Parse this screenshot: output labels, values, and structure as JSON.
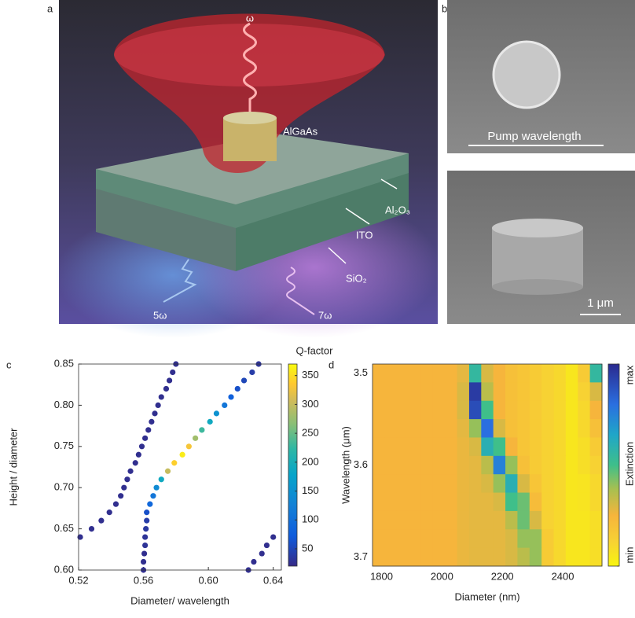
{
  "figure": {
    "panel_a": {
      "label": "a",
      "omega": "ω",
      "pillar": "AlGaAs",
      "layer_1": "Al₂O₃",
      "layer_2": "ITO",
      "layer_3": "SiO₂",
      "harmonic_5": "5ω",
      "harmonic_7": "7ω"
    },
    "panel_b": {
      "label": "b",
      "scale_top": "Pump wavelength",
      "scale_bottom": "1 μm"
    }
  },
  "chart_data": [
    {
      "type": "scatter",
      "panel_label": "c",
      "x_label": "Diameter/ wavelength",
      "y_label": "Height / diameter",
      "colorbar_label": "Q-factor",
      "colormap": "parula",
      "x": [
        0.521,
        0.528,
        0.534,
        0.539,
        0.543,
        0.546,
        0.548,
        0.55,
        0.552,
        0.555,
        0.557,
        0.559,
        0.561,
        0.563,
        0.565,
        0.567,
        0.569,
        0.571,
        0.574,
        0.576,
        0.578,
        0.58,
        0.56,
        0.56,
        0.5605,
        0.561,
        0.561,
        0.5615,
        0.562,
        0.562,
        0.564,
        0.566,
        0.568,
        0.571,
        0.575,
        0.579,
        0.584,
        0.588,
        0.592,
        0.596,
        0.601,
        0.605,
        0.61,
        0.614,
        0.618,
        0.622,
        0.627,
        0.631,
        0.6247,
        0.628,
        0.633,
        0.636,
        0.64
      ],
      "values": [
        0.64,
        0.65,
        0.66,
        0.67,
        0.68,
        0.69,
        0.7,
        0.71,
        0.72,
        0.73,
        0.74,
        0.75,
        0.76,
        0.77,
        0.78,
        0.79,
        0.8,
        0.81,
        0.82,
        0.83,
        0.84,
        0.85,
        0.6,
        0.61,
        0.62,
        0.63,
        0.64,
        0.65,
        0.66,
        0.67,
        0.68,
        0.69,
        0.7,
        0.71,
        0.72,
        0.73,
        0.74,
        0.75,
        0.76,
        0.77,
        0.78,
        0.79,
        0.8,
        0.81,
        0.82,
        0.83,
        0.84,
        0.85,
        0.6,
        0.61,
        0.62,
        0.63,
        0.64
      ],
      "color_values": [
        25,
        25,
        25,
        25,
        25,
        25,
        25,
        25,
        25,
        25,
        25,
        25,
        25,
        25,
        25,
        25,
        25,
        25,
        25,
        25,
        25,
        25,
        25,
        25,
        25,
        30,
        30,
        35,
        40,
        60,
        90,
        110,
        140,
        190,
        300,
        340,
        360,
        330,
        280,
        230,
        190,
        150,
        110,
        80,
        60,
        50,
        40,
        30,
        25,
        25,
        25,
        25,
        25
      ],
      "xlim": [
        0.52,
        0.645
      ],
      "ylim": [
        0.6,
        0.85
      ],
      "xticks": [
        0.52,
        0.56,
        {
          "value": 0.6,
          "label": "0.60"
        },
        0.64
      ],
      "yticks": [
        {
          "value": 0.6,
          "label": "0.60"
        },
        0.65,
        {
          "value": 0.7,
          "label": "0.70"
        },
        0.75,
        {
          "value": 0.8,
          "label": "0.80"
        },
        0.85
      ],
      "clim": [
        20,
        370
      ],
      "cticks": [
        50,
        100,
        150,
        200,
        250,
        300,
        350
      ]
    },
    {
      "type": "heatmap",
      "panel_label": "d",
      "x_label": "Diameter (nm)",
      "y_label": "Wavelength (μm)",
      "colorbar_label": "Extinction",
      "x": [
        1790,
        1830,
        1870,
        1910,
        1950,
        1990,
        2030,
        2070,
        2110,
        2150,
        2190,
        2230,
        2270,
        2310,
        2350,
        2390,
        2430,
        2470,
        2510
      ],
      "y": [
        3.5,
        3.52,
        3.54,
        3.56,
        3.58,
        3.6,
        3.62,
        3.64,
        3.66,
        3.68,
        3.7
      ],
      "z": [
        [
          0.25,
          0.25,
          0.25,
          0.25,
          0.25,
          0.25,
          0.25,
          0.28,
          0.55,
          0.3,
          0.25,
          0.2,
          0.18,
          0.15,
          0.12,
          0.1,
          0.05,
          0.15,
          0.55
        ],
        [
          0.25,
          0.25,
          0.25,
          0.25,
          0.25,
          0.25,
          0.25,
          0.3,
          0.95,
          0.35,
          0.25,
          0.2,
          0.18,
          0.15,
          0.12,
          0.1,
          0.05,
          0.12,
          0.3
        ],
        [
          0.25,
          0.25,
          0.25,
          0.25,
          0.25,
          0.25,
          0.25,
          0.3,
          0.9,
          0.5,
          0.25,
          0.2,
          0.18,
          0.15,
          0.12,
          0.1,
          0.05,
          0.1,
          0.25
        ],
        [
          0.25,
          0.25,
          0.25,
          0.25,
          0.25,
          0.25,
          0.25,
          0.28,
          0.4,
          0.8,
          0.3,
          0.2,
          0.18,
          0.15,
          0.12,
          0.1,
          0.05,
          0.1,
          0.2
        ],
        [
          0.25,
          0.25,
          0.25,
          0.25,
          0.25,
          0.25,
          0.25,
          0.27,
          0.3,
          0.6,
          0.5,
          0.25,
          0.18,
          0.15,
          0.12,
          0.1,
          0.05,
          0.08,
          0.15
        ],
        [
          0.25,
          0.25,
          0.25,
          0.25,
          0.25,
          0.25,
          0.25,
          0.27,
          0.28,
          0.35,
          0.75,
          0.4,
          0.2,
          0.15,
          0.12,
          0.1,
          0.05,
          0.08,
          0.12
        ],
        [
          0.25,
          0.25,
          0.25,
          0.25,
          0.25,
          0.25,
          0.25,
          0.27,
          0.28,
          0.3,
          0.4,
          0.6,
          0.3,
          0.18,
          0.12,
          0.1,
          0.05,
          0.06,
          0.1
        ],
        [
          0.25,
          0.25,
          0.25,
          0.25,
          0.25,
          0.25,
          0.25,
          0.27,
          0.28,
          0.28,
          0.3,
          0.5,
          0.45,
          0.22,
          0.12,
          0.1,
          0.05,
          0.06,
          0.1
        ],
        [
          0.25,
          0.25,
          0.25,
          0.25,
          0.25,
          0.25,
          0.25,
          0.27,
          0.28,
          0.28,
          0.28,
          0.35,
          0.45,
          0.3,
          0.12,
          0.1,
          0.05,
          0.05,
          0.08
        ],
        [
          0.25,
          0.25,
          0.25,
          0.25,
          0.25,
          0.25,
          0.25,
          0.27,
          0.28,
          0.28,
          0.28,
          0.3,
          0.4,
          0.4,
          0.15,
          0.1,
          0.05,
          0.05,
          0.08
        ],
        [
          0.25,
          0.25,
          0.25,
          0.25,
          0.25,
          0.25,
          0.25,
          0.27,
          0.28,
          0.28,
          0.28,
          0.3,
          0.35,
          0.4,
          0.15,
          0.1,
          0.05,
          0.05,
          0.08
        ]
      ],
      "xlim": [
        1770,
        2530
      ],
      "ylim": [
        3.49,
        3.71
      ],
      "y_inverted": true,
      "xticks": [
        1800,
        2000,
        2200,
        2400
      ],
      "yticks": [
        3.5,
        3.6,
        3.7
      ],
      "clim": [
        0,
        1
      ],
      "cticks": [
        {
          "value": 1,
          "label": "max"
        },
        {
          "value": 0,
          "label": "min"
        }
      ]
    }
  ]
}
